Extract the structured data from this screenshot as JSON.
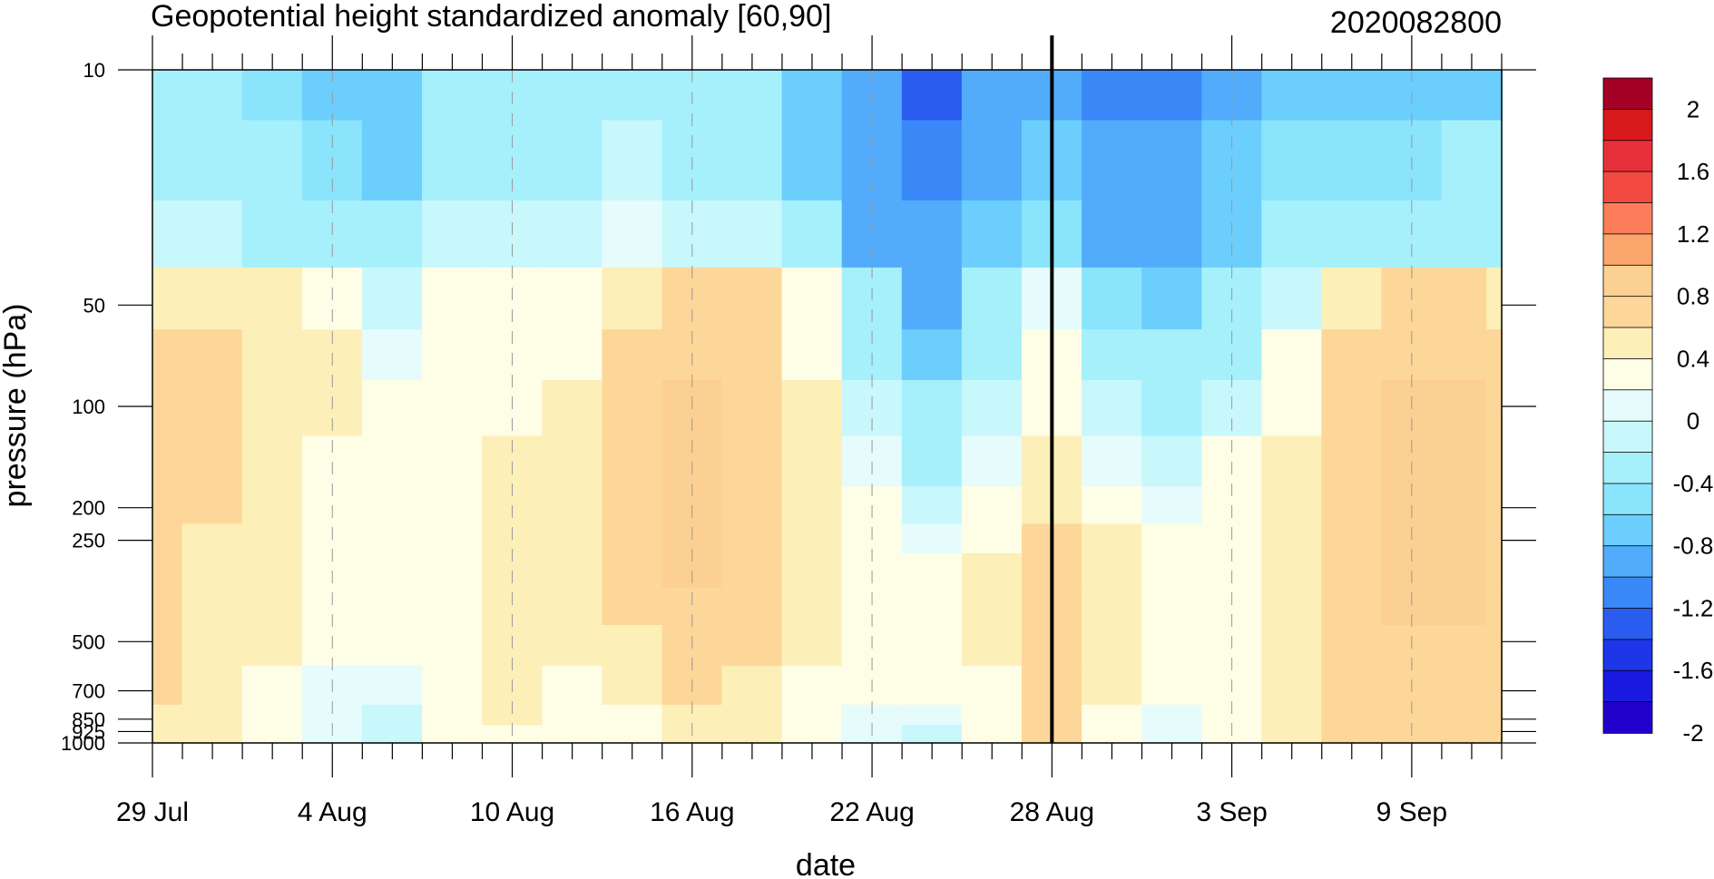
{
  "chart_data": {
    "type": "heatmap",
    "title": "Geopotential height standardized anomaly [60,90]",
    "title_right": "2020082800",
    "xlabel": "date",
    "ylabel": "pressure (hPa)",
    "x_range": [
      "2020-07-29",
      "2020-09-12"
    ],
    "x_ticks": [
      {
        "date": "2020-07-29",
        "label": "29 Jul"
      },
      {
        "date": "2020-08-04",
        "label": "4 Aug"
      },
      {
        "date": "2020-08-10",
        "label": "10 Aug"
      },
      {
        "date": "2020-08-16",
        "label": "16 Aug"
      },
      {
        "date": "2020-08-22",
        "label": "22 Aug"
      },
      {
        "date": "2020-08-28",
        "label": "28 Aug"
      },
      {
        "date": "2020-09-03",
        "label": "3 Sep"
      },
      {
        "date": "2020-09-09",
        "label": "9 Sep"
      }
    ],
    "y_scale": "log",
    "y_range": [
      1000,
      10
    ],
    "y_ticks": [
      10,
      50,
      100,
      200,
      250,
      500,
      700,
      850,
      925,
      1000
    ],
    "y_tick_labels": [
      "10",
      "50",
      "100",
      "200",
      "250",
      "500",
      "700",
      "850",
      "925",
      "1000"
    ],
    "marker_date": "2020-08-28",
    "colorbar": {
      "labels": [
        "2",
        "1.6",
        "1.2",
        "0.8",
        "0.4",
        "0",
        "-0.4",
        "-0.8",
        "-1.2",
        "-1.6",
        "-2"
      ],
      "colors": [
        "#a50026",
        "#d7191c",
        "#e8303a",
        "#f24a40",
        "#fc7d5a",
        "#fca56c",
        "#fcd092",
        "#fdd79a",
        "#fdefb8",
        "#fefde6",
        "#e6fbfc",
        "#c8f7fc",
        "#a6f0fc",
        "#8ae4fc",
        "#6bcefd",
        "#52acfb",
        "#3a88f8",
        "#2a5cf0",
        "#1c36e8",
        "#1a1ae0",
        "#2200cc"
      ]
    },
    "time_days": [
      0,
      2,
      4,
      6,
      8,
      10,
      12,
      14,
      16,
      18,
      20,
      22,
      24,
      26,
      28,
      30,
      32,
      34,
      36,
      38,
      40,
      42,
      44,
      45
    ],
    "levels_hpa": [
      10,
      20,
      30,
      50,
      70,
      100,
      150,
      200,
      250,
      300,
      400,
      500,
      700,
      850,
      925,
      1000
    ],
    "values": [
      [
        -0.6,
        -0.6,
        -0.7,
        -0.8,
        -0.8,
        -0.6,
        -0.6,
        -0.6,
        -0.5,
        -0.6,
        -0.6,
        -0.9,
        -1.2,
        -1.5,
        -1.1,
        -1.0,
        -1.3,
        -1.3,
        -1.0,
        -0.9,
        -0.8,
        -0.8,
        -0.8,
        -0.8
      ],
      [
        -0.5,
        -0.5,
        -0.6,
        -0.7,
        -0.8,
        -0.5,
        -0.4,
        -0.5,
        -0.3,
        -0.4,
        -0.5,
        -0.8,
        -1.1,
        -1.4,
        -1.0,
        -0.9,
        -1.2,
        -1.2,
        -0.9,
        -0.7,
        -0.7,
        -0.7,
        -0.6,
        -0.6
      ],
      [
        -0.3,
        -0.3,
        -0.4,
        -0.5,
        -0.6,
        -0.3,
        -0.2,
        -0.3,
        -0.1,
        -0.2,
        -0.3,
        -0.6,
        -1.0,
        -1.2,
        -0.9,
        -0.7,
        -1.0,
        -1.0,
        -0.8,
        -0.6,
        -0.5,
        -0.5,
        -0.4,
        -0.4
      ],
      [
        0.3,
        0.3,
        0.2,
        0.1,
        -0.2,
        0.05,
        0.05,
        0.05,
        0.3,
        0.5,
        0.4,
        0.0,
        -0.6,
        -1.0,
        -0.6,
        -0.1,
        -0.7,
        -0.8,
        -0.6,
        -0.2,
        0.3,
        0.4,
        0.4,
        0.3
      ],
      [
        0.4,
        0.4,
        0.3,
        0.2,
        -0.1,
        0.1,
        0.1,
        0.1,
        0.4,
        0.6,
        0.5,
        0.1,
        -0.4,
        -0.8,
        -0.4,
        0.0,
        -0.5,
        -0.6,
        -0.4,
        0.0,
        0.4,
        0.6,
        0.6,
        0.5
      ],
      [
        0.4,
        0.4,
        0.3,
        0.2,
        0.0,
        0.1,
        0.1,
        0.2,
        0.5,
        0.7,
        0.6,
        0.2,
        -0.3,
        -0.6,
        -0.2,
        0.1,
        -0.3,
        -0.4,
        -0.2,
        0.1,
        0.5,
        0.7,
        0.7,
        0.6
      ],
      [
        0.4,
        0.4,
        0.3,
        0.1,
        0.1,
        0.1,
        0.3,
        0.2,
        0.6,
        0.7,
        0.6,
        0.3,
        -0.1,
        -0.4,
        -0.1,
        0.2,
        -0.1,
        -0.2,
        0.0,
        0.2,
        0.5,
        0.7,
        0.7,
        0.6
      ],
      [
        0.4,
        0.4,
        0.3,
        0.1,
        0.1,
        0.1,
        0.3,
        0.2,
        0.6,
        0.7,
        0.6,
        0.3,
        0.0,
        -0.2,
        0.0,
        0.3,
        0.1,
        -0.1,
        0.1,
        0.3,
        0.5,
        0.7,
        0.7,
        0.6
      ],
      [
        0.4,
        0.3,
        0.2,
        0.1,
        0.1,
        0.1,
        0.3,
        0.2,
        0.5,
        0.7,
        0.5,
        0.2,
        0.1,
        -0.1,
        0.1,
        0.4,
        0.2,
        0.0,
        0.1,
        0.3,
        0.5,
        0.7,
        0.7,
        0.6
      ],
      [
        0.4,
        0.3,
        0.2,
        0.1,
        0.1,
        0.1,
        0.3,
        0.2,
        0.5,
        0.7,
        0.5,
        0.2,
        0.1,
        0.0,
        0.2,
        0.5,
        0.3,
        0.1,
        0.1,
        0.3,
        0.5,
        0.7,
        0.7,
        0.6
      ],
      [
        0.4,
        0.3,
        0.2,
        0.1,
        0.1,
        0.1,
        0.3,
        0.2,
        0.4,
        0.6,
        0.5,
        0.2,
        0.1,
        0.0,
        0.2,
        0.6,
        0.3,
        0.1,
        0.1,
        0.3,
        0.5,
        0.7,
        0.7,
        0.6
      ],
      [
        0.4,
        0.3,
        0.2,
        0.0,
        0.0,
        0.1,
        0.3,
        0.2,
        0.3,
        0.5,
        0.4,
        0.2,
        0.1,
        0.0,
        0.2,
        0.6,
        0.3,
        0.1,
        0.1,
        0.2,
        0.4,
        0.6,
        0.6,
        0.6
      ],
      [
        0.4,
        0.3,
        0.1,
        -0.1,
        -0.1,
        0.1,
        0.3,
        0.1,
        0.2,
        0.4,
        0.3,
        0.1,
        0.0,
        0.0,
        0.1,
        0.6,
        0.2,
        0.0,
        0.1,
        0.2,
        0.4,
        0.6,
        0.6,
        0.6
      ],
      [
        0.3,
        0.2,
        0.1,
        -0.1,
        -0.2,
        0.0,
        0.2,
        0.1,
        0.1,
        0.3,
        0.2,
        0.1,
        -0.1,
        -0.1,
        0.1,
        0.5,
        0.1,
        -0.1,
        0.0,
        0.2,
        0.4,
        0.6,
        0.6,
        0.6
      ],
      [
        0.3,
        0.2,
        0.1,
        -0.1,
        -0.3,
        0.0,
        0.1,
        0.0,
        0.1,
        0.2,
        0.2,
        0.1,
        -0.1,
        -0.2,
        0.0,
        0.5,
        0.1,
        -0.1,
        0.0,
        0.2,
        0.4,
        0.6,
        0.6,
        0.6
      ],
      [
        0.3,
        0.2,
        0.1,
        -0.1,
        -0.3,
        0.0,
        0.1,
        0.0,
        0.1,
        0.2,
        0.2,
        0.1,
        -0.1,
        -0.2,
        0.0,
        0.4,
        0.1,
        -0.1,
        0.0,
        0.2,
        0.4,
        0.6,
        0.6,
        0.6
      ]
    ]
  }
}
